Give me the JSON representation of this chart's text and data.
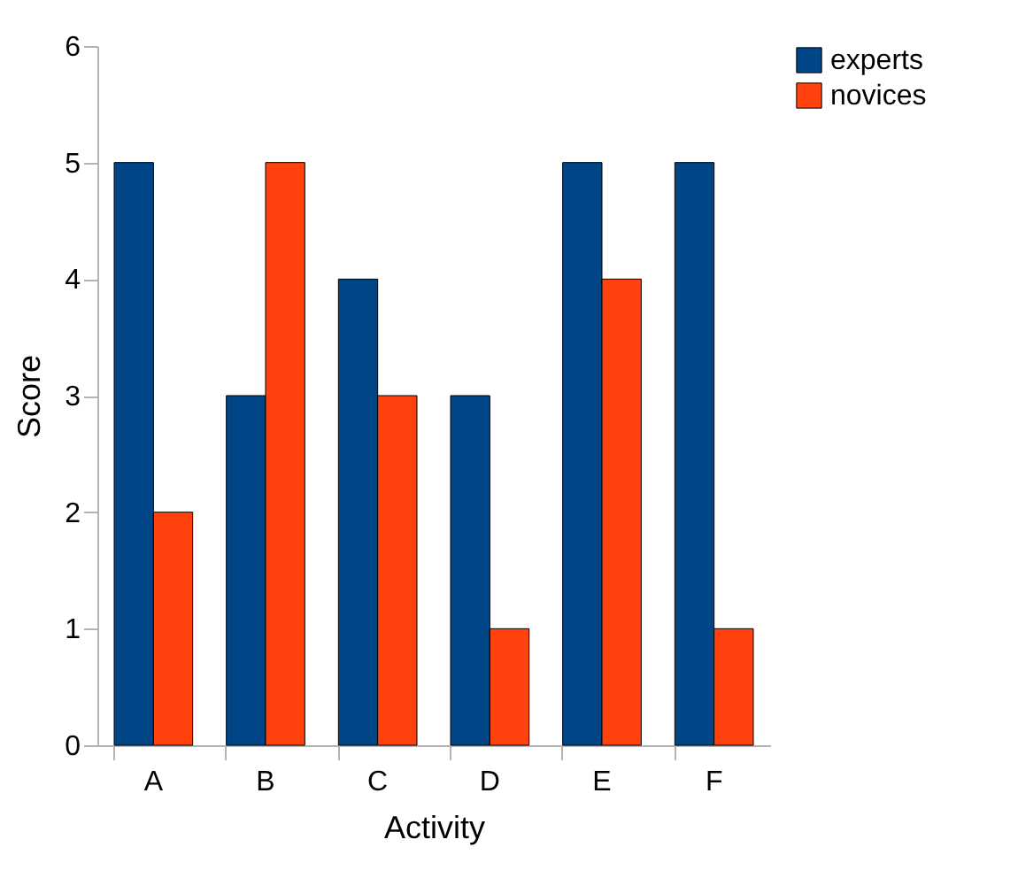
{
  "chart_data": {
    "type": "bar",
    "xlabel": "Activity",
    "ylabel": "Score",
    "categories": [
      "A",
      "B",
      "C",
      "D",
      "E",
      "F"
    ],
    "series": [
      {
        "name": "experts",
        "color": "#004586",
        "values": [
          5,
          3,
          4,
          3,
          5,
          5
        ]
      },
      {
        "name": "novices",
        "color": "#ff420e",
        "values": [
          2,
          5,
          3,
          1,
          4,
          1
        ]
      }
    ],
    "ylim": [
      0,
      6
    ],
    "yticks": [
      0,
      1,
      2,
      3,
      4,
      5,
      6
    ],
    "grid": false,
    "legend": "right"
  }
}
